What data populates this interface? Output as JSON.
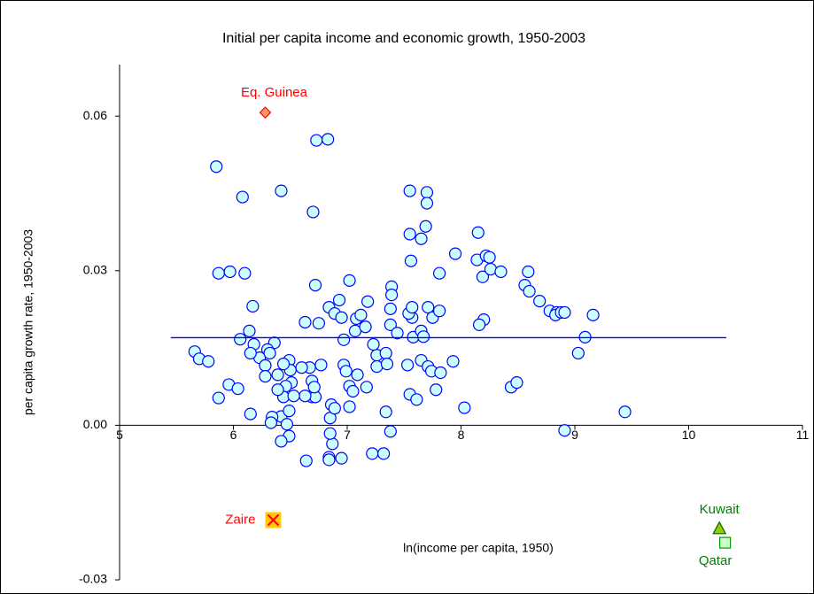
{
  "chart_data": {
    "type": "scatter",
    "title": "Initial per capita income and economic growth, 1950-2003",
    "x_label": "ln(income per capita, 1950)",
    "y_label": "per capita growth rate, 1950-2003",
    "xlim": [
      5,
      11
    ],
    "ylim": [
      -0.03,
      0.07
    ],
    "xticks": [
      5,
      6,
      7,
      8,
      9,
      10,
      11
    ],
    "yticks": [
      -0.03,
      {
        "value": 0,
        "label": "0.00"
      },
      0.03,
      0.06
    ],
    "grid": false,
    "series": [
      {
        "type": "scatter",
        "marker": "circle",
        "color": "#ccffff",
        "edge_color": "#0000ff",
        "x": [
          5.85,
          5.87,
          5.97,
          6.1,
          6.08,
          6.42,
          6.7,
          6.73,
          6.83,
          7.55,
          7.7,
          7.7,
          7.69,
          7.55,
          7.65,
          8.15,
          7.95,
          8.14,
          8.19,
          8.22,
          8.25,
          8.26,
          8.35,
          7.56,
          7.38,
          7.39,
          7.39,
          7.38,
          7.44,
          6.72,
          7.02,
          6.93,
          6.84,
          6.75,
          6.89,
          6.95,
          7.08,
          7.18,
          7.12,
          7.07,
          6.97,
          6.97,
          7.09,
          7.02,
          7.02,
          6.85,
          6.87,
          6.84,
          6.95,
          6.85,
          6.86,
          6.89,
          6.67,
          6.6,
          6.69,
          6.69,
          6.72,
          6.49,
          6.5,
          6.39,
          6.44,
          6.51,
          6.46,
          6.44,
          6.42,
          6.49,
          6.47,
          6.34,
          6.33,
          6.49,
          6.42,
          6.36,
          6.3,
          6.23,
          6.32,
          6.17,
          6.14,
          6.06,
          6.18,
          6.15,
          5.66,
          5.7,
          5.78,
          5.96,
          5.87,
          6.04,
          6.28,
          6.28,
          6.15,
          6.39,
          6.63,
          6.77,
          6.63,
          7.05,
          7.26,
          7.26,
          7.23,
          7.16,
          7.34,
          7.35,
          7.17,
          7.38,
          7.34,
          7.22,
          7.32,
          7.53,
          7.55,
          7.61,
          7.58,
          7.57,
          7.54,
          7.57,
          7.65,
          7.67,
          7.65,
          7.71,
          7.74,
          7.71,
          7.75,
          7.81,
          7.78,
          7.82,
          7.93,
          7.81,
          8.03,
          8.2,
          8.16,
          8.56,
          8.59,
          8.6,
          8.69,
          8.78,
          8.84,
          8.83,
          8.88,
          8.91,
          9.16,
          9.09,
          9.03,
          8.44,
          8.49,
          8.91,
          9.44,
          6.99,
          6.64,
          6.84,
          6.53,
          6.71
        ],
        "values": [
          0.0502,
          0.0295,
          0.0298,
          0.0295,
          0.0443,
          0.0455,
          0.0414,
          0.0553,
          0.0555,
          0.0455,
          0.0452,
          0.0431,
          0.0386,
          0.0371,
          0.0362,
          0.0374,
          0.0333,
          0.0321,
          0.0288,
          0.0329,
          0.0326,
          0.0303,
          0.0298,
          0.0319,
          0.0226,
          0.0269,
          0.0253,
          0.0195,
          0.0179,
          0.0272,
          0.0281,
          0.0243,
          0.0229,
          0.0198,
          0.0217,
          0.0209,
          0.0207,
          0.024,
          0.0214,
          0.0183,
          0.0166,
          0.0117,
          0.0098,
          0.0076,
          0.0036,
          0.0014,
          -0.0036,
          -0.0062,
          -0.0064,
          -0.0016,
          0.004,
          0.0033,
          0.0112,
          0.0112,
          0.0086,
          0.0055,
          0.0055,
          0.0126,
          0.0107,
          0.0098,
          0.0119,
          0.0083,
          0.0076,
          0.0055,
          0.0017,
          0.0028,
          0.0002,
          0.0016,
          0.0005,
          -0.0021,
          -0.0031,
          0.016,
          0.0147,
          0.0131,
          0.014,
          0.0231,
          0.0183,
          0.0167,
          0.0157,
          0.014,
          0.0143,
          0.0129,
          0.0124,
          0.0079,
          0.0053,
          0.0071,
          0.0116,
          0.0095,
          0.0022,
          0.0069,
          0.02,
          0.0117,
          0.0057,
          0.0066,
          0.0136,
          0.0114,
          0.0157,
          0.0191,
          0.014,
          0.0119,
          0.0074,
          -0.0012,
          0.0026,
          -0.0055,
          -0.0055,
          0.0117,
          0.006,
          0.005,
          0.0171,
          0.0209,
          0.0217,
          0.0229,
          0.0183,
          0.0172,
          0.0126,
          0.0114,
          0.0105,
          0.0229,
          0.0209,
          0.0222,
          0.0069,
          0.0102,
          0.0124,
          0.0295,
          0.0034,
          0.0205,
          0.0195,
          0.0272,
          0.0298,
          0.026,
          0.0241,
          0.0222,
          0.0219,
          0.0214,
          0.0219,
          0.0219,
          0.0214,
          0.0171,
          0.014,
          0.0074,
          0.0083,
          -0.001,
          0.0026,
          0.0105,
          -0.0069,
          -0.0067,
          0.0057,
          0.0074
        ]
      },
      {
        "type": "line",
        "color": "#0000ff",
        "x": [
          5.45,
          10.33
        ],
        "values": [
          0.017,
          0.017
        ]
      },
      {
        "type": "scatter",
        "name": "Eq. Guinea",
        "marker": "diamond",
        "color": "#ff9966",
        "edge_color": "#ff0000",
        "label_color": "#ff0000",
        "x": [
          6.28
        ],
        "values": [
          0.0607
        ]
      },
      {
        "type": "scatter",
        "name": "Zaire",
        "marker": "square-x",
        "color": "#ffcc00",
        "edge_color": "#ff0000",
        "label_color": "#ff0000",
        "x": [
          6.35
        ],
        "values": [
          -0.0184
        ]
      },
      {
        "type": "scatter",
        "name": "Kuwait",
        "marker": "triangle",
        "color": "#99cc00",
        "edge_color": "#006600",
        "label_color": "#008000",
        "x": [
          10.27
        ],
        "values": [
          -0.02
        ]
      },
      {
        "type": "scatter",
        "name": "Qatar",
        "marker": "square",
        "color": "#ccffcc",
        "edge_color": "#009900",
        "label_color": "#008000",
        "x": [
          10.32
        ],
        "values": [
          -0.0228
        ]
      }
    ]
  }
}
